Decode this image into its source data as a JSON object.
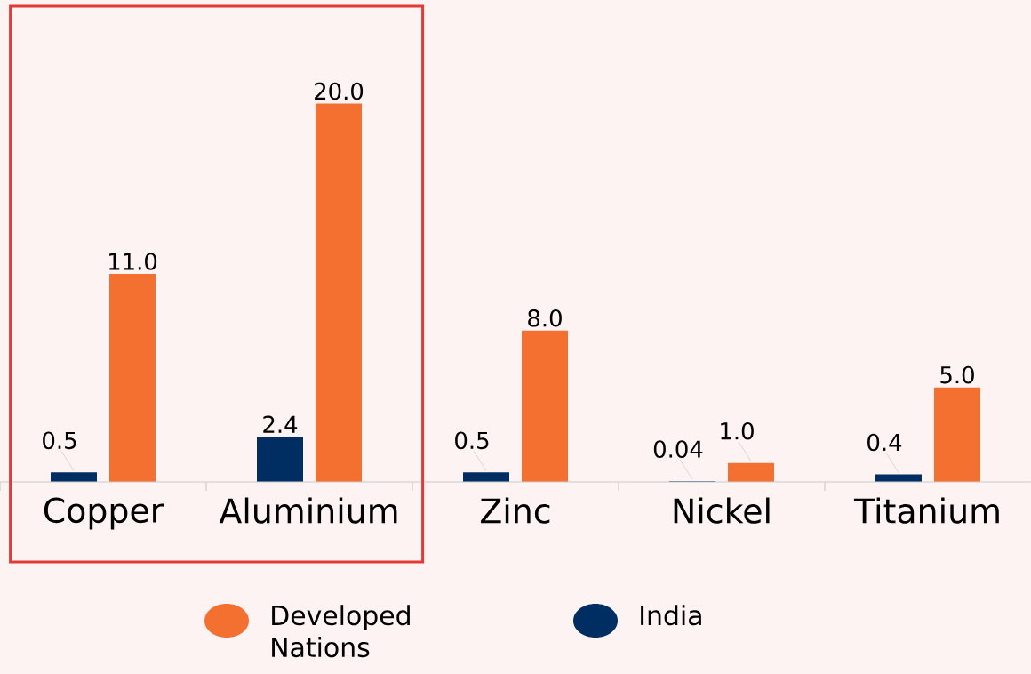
{
  "chart_data": {
    "type": "bar",
    "categories": [
      "Copper",
      "Aluminium",
      "Zinc",
      "Nickel",
      "Titanium"
    ],
    "series": [
      {
        "name": "India",
        "color": "#002d62",
        "values": [
          0.5,
          2.4,
          0.5,
          0.04,
          0.4
        ],
        "value_labels": [
          "0.5",
          "2.4",
          "0.5",
          "0.04",
          "0.4"
        ]
      },
      {
        "name": "Developed Nations",
        "color": "#f47030",
        "values": [
          11.0,
          20.0,
          8.0,
          1.0,
          5.0
        ],
        "value_labels": [
          "11.0",
          "20.0",
          "8.0",
          "1.0",
          "5.0"
        ]
      }
    ],
    "legend": "bottom"
  }
}
